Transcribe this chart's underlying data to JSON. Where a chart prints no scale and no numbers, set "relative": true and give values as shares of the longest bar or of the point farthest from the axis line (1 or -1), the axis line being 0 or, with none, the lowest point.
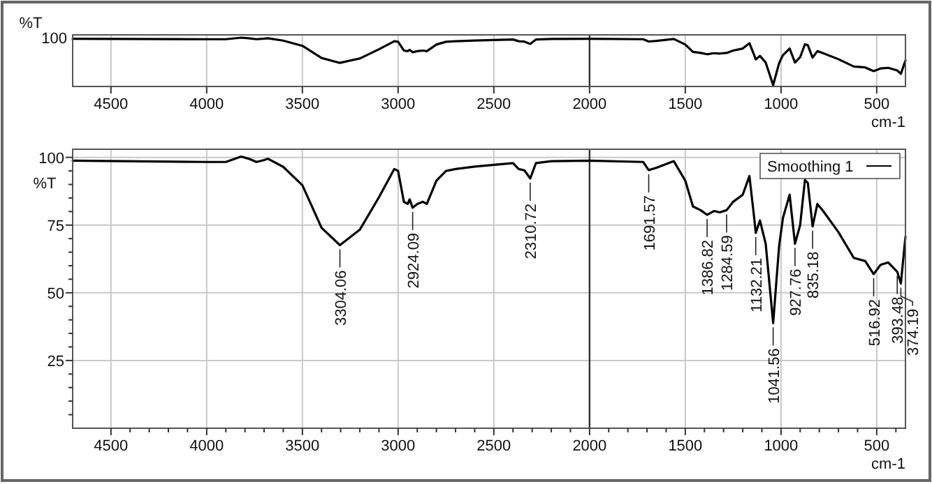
{
  "chart_data": [
    {
      "type": "line",
      "xlabel": "cm-1",
      "ylabel": "%T",
      "xlim": [
        4700,
        350
      ],
      "relative": true,
      "annotations": [
        "100"
      ],
      "xticks": [
        4500,
        4000,
        3500,
        3000,
        2500,
        2000,
        1500,
        1000,
        500
      ],
      "grid": "x",
      "legend": false,
      "ref_lines": [
        {
          "axis": "x",
          "value": 2000,
          "color": "#333333"
        }
      ],
      "x": [
        4700,
        4000,
        3900,
        3820,
        3780,
        3740,
        3700,
        3680,
        3600,
        3500,
        3400,
        3304,
        3200,
        3100,
        3020,
        3000,
        2970,
        2950,
        2940,
        2924,
        2900,
        2870,
        2850,
        2800,
        2750,
        2700,
        2600,
        2400,
        2370,
        2340,
        2310,
        2280,
        2200,
        2000,
        1720,
        1691,
        1650,
        1560,
        1500,
        1460,
        1420,
        1386,
        1350,
        1320,
        1284,
        1250,
        1200,
        1165,
        1140,
        1132,
        1110,
        1080,
        1041,
        1010,
        990,
        955,
        927,
        900,
        875,
        860,
        835,
        810,
        780,
        700,
        620,
        560,
        516,
        480,
        440,
        393,
        374,
        350
      ],
      "series": [
        {
          "color": "#000000",
          "values": [
            0.976,
            0.967,
            0.967,
            1,
            0.987,
            0.967,
            0.979,
            0.987,
            0.938,
            0.828,
            0.572,
            0.468,
            0.561,
            0.756,
            0.925,
            0.914,
            0.728,
            0.715,
            0.743,
            0.693,
            0.715,
            0.728,
            0.715,
            0.855,
            0.914,
            0.925,
            0.94,
            0.961,
            0.925,
            0.917,
            0.868,
            0.961,
            0.972,
            0.976,
            0.967,
            0.919,
            0.933,
            0.972,
            0.855,
            0.701,
            0.678,
            0.65,
            0.673,
            0.665,
            0.678,
            0.728,
            0.771,
            0.883,
            0.631,
            0.541,
            0.616,
            0.476,
            0,
            0.462,
            0.631,
            0.771,
            0.476,
            0.589,
            0.86,
            0.841,
            0.58,
            0.715,
            0.673,
            0.546,
            0.392,
            0.372,
            0.294,
            0.35,
            0.364,
            0.309,
            0.237,
            0.519
          ]
        }
      ]
    },
    {
      "type": "line",
      "xlabel": "cm-1",
      "ylabel": "%T",
      "xlim": [
        4700,
        350
      ],
      "ylim": [
        0,
        103
      ],
      "xticks": [
        4500,
        {
          "value": 4400,
          "label": null
        },
        {
          "value": 4300,
          "label": null
        },
        {
          "value": 4200,
          "label": null
        },
        {
          "value": 4100,
          "label": null
        },
        4000,
        {
          "value": 3900,
          "label": null
        },
        {
          "value": 3800,
          "label": null
        },
        {
          "value": 3700,
          "label": null
        },
        {
          "value": 3600,
          "label": null
        },
        3500,
        {
          "value": 3400,
          "label": null
        },
        {
          "value": 3300,
          "label": null
        },
        {
          "value": 3200,
          "label": null
        },
        {
          "value": 3100,
          "label": null
        },
        3000,
        {
          "value": 2900,
          "label": null
        },
        {
          "value": 2800,
          "label": null
        },
        {
          "value": 2700,
          "label": null
        },
        {
          "value": 2600,
          "label": null
        },
        2500,
        {
          "value": 2400,
          "label": null
        },
        {
          "value": 2300,
          "label": null
        },
        {
          "value": 2200,
          "label": null
        },
        {
          "value": 2100,
          "label": null
        },
        2000,
        {
          "value": 1900,
          "label": null
        },
        {
          "value": 1800,
          "label": null
        },
        {
          "value": 1700,
          "label": null
        },
        {
          "value": 1600,
          "label": null
        },
        1500,
        {
          "value": 1400,
          "label": null
        },
        {
          "value": 1300,
          "label": null
        },
        {
          "value": 1200,
          "label": null
        },
        {
          "value": 1100,
          "label": null
        },
        1000,
        {
          "value": 900,
          "label": null
        },
        {
          "value": 800,
          "label": null
        },
        {
          "value": 700,
          "label": null
        },
        {
          "value": 600,
          "label": null
        },
        500,
        {
          "value": 400,
          "label": null
        }
      ],
      "yticks": [
        {
          "value": 5,
          "label": null
        },
        {
          "value": 10,
          "label": null
        },
        {
          "value": 15,
          "label": null
        },
        {
          "value": 20,
          "label": null
        },
        25,
        {
          "value": 30,
          "label": null
        },
        {
          "value": 35,
          "label": null
        },
        {
          "value": 40,
          "label": null
        },
        {
          "value": 45,
          "label": null
        },
        50,
        {
          "value": 55,
          "label": null
        },
        {
          "value": 60,
          "label": null
        },
        {
          "value": 65,
          "label": null
        },
        {
          "value": 70,
          "label": null
        },
        75,
        {
          "value": 80,
          "label": null
        },
        {
          "value": 85,
          "label": null
        },
        {
          "value": 90,
          "label": null
        },
        {
          "value": 95,
          "label": null
        },
        100
      ],
      "grid": true,
      "legend": "top right",
      "ref_lines": [
        {
          "axis": "x",
          "value": 2000,
          "color": "#333333"
        }
      ],
      "x": [
        4700,
        4000,
        3900,
        3820,
        3780,
        3740,
        3700,
        3680,
        3600,
        3500,
        3400,
        3304,
        3200,
        3100,
        3020,
        3000,
        2970,
        2950,
        2940,
        2924,
        2900,
        2870,
        2850,
        2800,
        2750,
        2700,
        2600,
        2400,
        2370,
        2340,
        2310,
        2280,
        2200,
        2000,
        1720,
        1691,
        1650,
        1560,
        1500,
        1460,
        1420,
        1386,
        1350,
        1320,
        1284,
        1250,
        1200,
        1165,
        1140,
        1132,
        1110,
        1080,
        1041,
        1010,
        990,
        955,
        927,
        900,
        875,
        860,
        835,
        810,
        780,
        700,
        620,
        560,
        516,
        480,
        440,
        393,
        374,
        350
      ],
      "series": [
        {
          "name": "Smoothing 1",
          "color": "#000000",
          "values": [
            98.8,
            98.3,
            98.3,
            100.3,
            99.5,
            98.3,
            99,
            99.5,
            96.5,
            89.7,
            74,
            67.6,
            73.3,
            85.3,
            95.7,
            95,
            83.6,
            82.8,
            84.5,
            81.4,
            82.8,
            83.6,
            82.8,
            91.4,
            95,
            95.7,
            96.6,
            97.9,
            95.7,
            95.2,
            92.2,
            97.9,
            98.6,
            98.8,
            98.3,
            95.3,
            96.2,
            98.6,
            91.4,
            81.9,
            80.5,
            78.8,
            80.2,
            79.7,
            80.5,
            83.6,
            86.2,
            93.1,
            77.6,
            72.1,
            76.7,
            68.1,
            38.8,
            67.2,
            77.6,
            86.2,
            68.1,
            75,
            91.7,
            90.5,
            74.5,
            82.8,
            80.2,
            72.4,
            62.9,
            61.7,
            56.9,
            60.3,
            61.2,
            57.8,
            53.4,
            70.7
          ]
        }
      ],
      "annotations": [
        {
          "text": "3304.06",
          "x": 3304,
          "y": 67.6
        },
        {
          "text": "2924.09",
          "x": 2924,
          "y": 81.4
        },
        {
          "text": "2310.72",
          "x": 2310,
          "y": 92.2
        },
        {
          "text": "1691.57",
          "x": 1691,
          "y": 95.3
        },
        {
          "text": "1386.82",
          "x": 1386,
          "y": 78.8
        },
        {
          "text": "1284.59",
          "x": 1284,
          "y": 80.5
        },
        {
          "text": "1132.21",
          "x": 1132,
          "y": 72.1
        },
        {
          "text": "1041.56",
          "x": 1041,
          "y": 38.8
        },
        {
          "text": "927.76",
          "x": 927,
          "y": 68.1
        },
        {
          "text": "835.18",
          "x": 835,
          "y": 74.5
        },
        {
          "text": "516.92",
          "x": 516,
          "y": 56.9
        },
        {
          "text": "393.48",
          "x": 393,
          "y": 57.8
        },
        {
          "text": "374.19",
          "x": 374,
          "y": 53.4
        }
      ]
    }
  ]
}
